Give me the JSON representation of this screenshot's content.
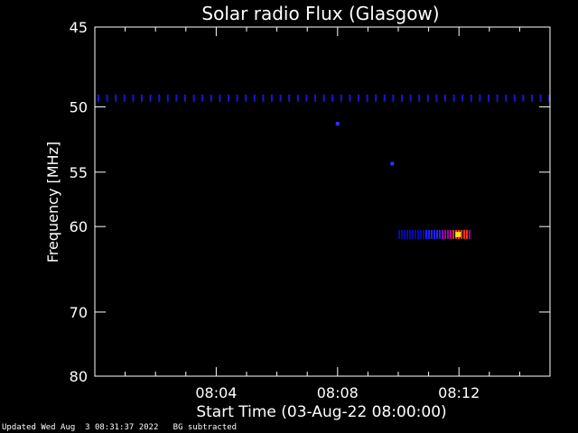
{
  "chart_data": {
    "type": "heatmap",
    "title": "Solar radio Flux (Glasgow)",
    "xlabel": "Start Time (03-Aug-22 08:00:00)",
    "ylabel": "Frequency [MHz]",
    "x_range_minutes": [
      0,
      15
    ],
    "x_ticks": [
      {
        "minute": 4,
        "label": "08:04"
      },
      {
        "minute": 8,
        "label": "08:08"
      },
      {
        "minute": 12,
        "label": "08:12"
      }
    ],
    "y_range_mhz": [
      45,
      80
    ],
    "y_scale": "reciprocal",
    "y_ticks": [
      {
        "mhz": 45,
        "label": "45"
      },
      {
        "mhz": 50,
        "label": "50"
      },
      {
        "mhz": 55,
        "label": "55"
      },
      {
        "mhz": 60,
        "label": "60"
      },
      {
        "mhz": 70,
        "label": "70"
      },
      {
        "mhz": 80,
        "label": "80"
      }
    ],
    "features": [
      {
        "name": "narrowband interference line",
        "mhz": 49.4,
        "minute_start": 0,
        "minute_end": 15,
        "intensity": "low"
      },
      {
        "name": "radio burst",
        "mhz": 60.8,
        "minute_start": 10,
        "minute_end": 12.4,
        "peak_minute": 12.0,
        "intensity": "high"
      },
      {
        "name": "point",
        "mhz": 51.2,
        "minute": 8.0,
        "intensity": "low"
      },
      {
        "name": "point",
        "mhz": 54.3,
        "minute": 9.8,
        "intensity": "low"
      }
    ],
    "colormap": [
      "#000000",
      "#0000ff",
      "#ff0000",
      "#ffff00"
    ]
  },
  "footer": {
    "updated": "Updated Wed Aug  3 08:31:37 2022",
    "note": "BG subtracted"
  }
}
